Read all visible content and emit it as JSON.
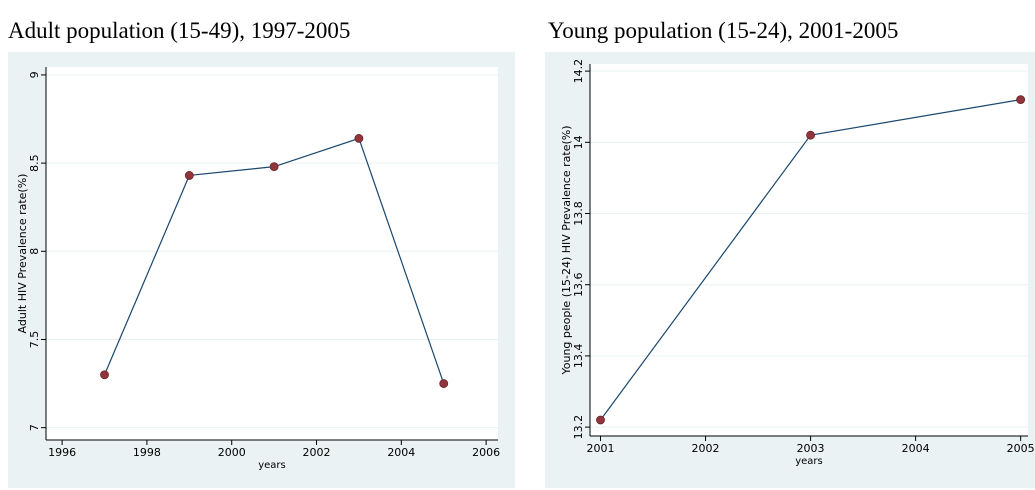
{
  "chart_data": [
    {
      "type": "line",
      "title": "Adult population (15-49), 1997-2005",
      "xlabel": "years",
      "ylabel": "Adult HIV Prevalence rate(%)",
      "x": [
        1997,
        1999,
        2001,
        2003,
        2005
      ],
      "values": [
        7.3,
        8.43,
        8.48,
        8.64,
        7.25
      ],
      "xlim": [
        1995.62,
        2006.28
      ],
      "ylim": [
        6.93,
        9.045
      ],
      "xticks": [
        1996,
        1998,
        2000,
        2002,
        2004,
        2006
      ],
      "yticks": [
        7,
        7.5,
        8,
        8.5,
        9
      ],
      "color": "#1a476f",
      "marker_color": "#90353b",
      "grid": true
    },
    {
      "type": "line",
      "title": "Young population (15-24), 2001-2005",
      "xlabel": "years",
      "ylabel": "Young people (15-24) HIV Prevalence rate(%)",
      "x": [
        2001,
        2003,
        2005
      ],
      "values": [
        13.22,
        14.02,
        14.12
      ],
      "xlim": [
        2000.9,
        2005.07
      ],
      "ylim": [
        13.175,
        14.22
      ],
      "xticks": [
        2001,
        2002,
        2003,
        2004,
        2005
      ],
      "yticks": [
        13.2,
        13.4,
        13.6,
        13.8,
        14,
        14.2
      ],
      "color": "#1a476f",
      "marker_color": "#90353b",
      "grid": true
    }
  ]
}
